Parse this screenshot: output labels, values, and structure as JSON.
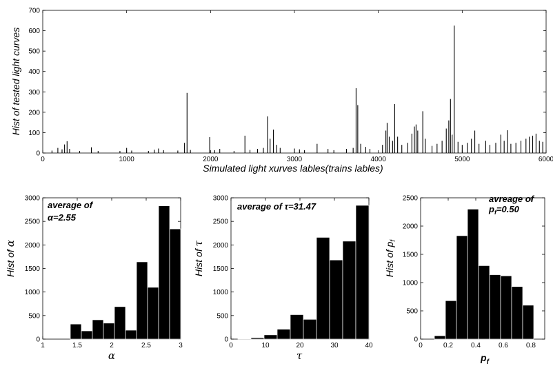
{
  "chart_data": [
    {
      "type": "bar",
      "id": "top",
      "xlabel": "Simulated light xurves lables(trains lables)",
      "ylabel": "Hist of tested light curves",
      "xlim": [
        0,
        6000
      ],
      "ylim": [
        0,
        700
      ],
      "xticks": [
        0,
        1000,
        2000,
        3000,
        4000,
        5000,
        6000
      ],
      "xtick_labels": [
        "0",
        "1000",
        "2000",
        "3000",
        "4000",
        "5000",
        "6000"
      ],
      "yticks": [
        0,
        100,
        200,
        300,
        400,
        500,
        600,
        700
      ],
      "ytick_labels": [
        "0",
        "100",
        "200",
        "300",
        "400",
        "500",
        "600",
        "700"
      ],
      "grid": false,
      "peaks": [
        {
          "x": 110,
          "y": 12
        },
        {
          "x": 180,
          "y": 25
        },
        {
          "x": 230,
          "y": 18
        },
        {
          "x": 260,
          "y": 42
        },
        {
          "x": 290,
          "y": 58
        },
        {
          "x": 320,
          "y": 20
        },
        {
          "x": 440,
          "y": 10
        },
        {
          "x": 580,
          "y": 28
        },
        {
          "x": 660,
          "y": 10
        },
        {
          "x": 920,
          "y": 10
        },
        {
          "x": 1000,
          "y": 25
        },
        {
          "x": 1060,
          "y": 12
        },
        {
          "x": 1260,
          "y": 10
        },
        {
          "x": 1330,
          "y": 16
        },
        {
          "x": 1380,
          "y": 22
        },
        {
          "x": 1440,
          "y": 14
        },
        {
          "x": 1610,
          "y": 12
        },
        {
          "x": 1690,
          "y": 50
        },
        {
          "x": 1720,
          "y": 295
        },
        {
          "x": 1760,
          "y": 15
        },
        {
          "x": 1990,
          "y": 78
        },
        {
          "x": 2050,
          "y": 14
        },
        {
          "x": 2110,
          "y": 20
        },
        {
          "x": 2280,
          "y": 10
        },
        {
          "x": 2410,
          "y": 85
        },
        {
          "x": 2470,
          "y": 15
        },
        {
          "x": 2560,
          "y": 20
        },
        {
          "x": 2630,
          "y": 25
        },
        {
          "x": 2680,
          "y": 180
        },
        {
          "x": 2710,
          "y": 70
        },
        {
          "x": 2750,
          "y": 115
        },
        {
          "x": 2790,
          "y": 40
        },
        {
          "x": 2830,
          "y": 25
        },
        {
          "x": 3000,
          "y": 22
        },
        {
          "x": 3060,
          "y": 18
        },
        {
          "x": 3120,
          "y": 14
        },
        {
          "x": 3270,
          "y": 45
        },
        {
          "x": 3400,
          "y": 20
        },
        {
          "x": 3470,
          "y": 14
        },
        {
          "x": 3620,
          "y": 20
        },
        {
          "x": 3700,
          "y": 25
        },
        {
          "x": 3735,
          "y": 318
        },
        {
          "x": 3755,
          "y": 235
        },
        {
          "x": 3790,
          "y": 45
        },
        {
          "x": 3850,
          "y": 30
        },
        {
          "x": 3900,
          "y": 20
        },
        {
          "x": 4050,
          "y": 40
        },
        {
          "x": 4090,
          "y": 110
        },
        {
          "x": 4105,
          "y": 148
        },
        {
          "x": 4130,
          "y": 80
        },
        {
          "x": 4170,
          "y": 60
        },
        {
          "x": 4195,
          "y": 240
        },
        {
          "x": 4230,
          "y": 80
        },
        {
          "x": 4280,
          "y": 40
        },
        {
          "x": 4350,
          "y": 50
        },
        {
          "x": 4400,
          "y": 95
        },
        {
          "x": 4430,
          "y": 130
        },
        {
          "x": 4450,
          "y": 140
        },
        {
          "x": 4470,
          "y": 110
        },
        {
          "x": 4530,
          "y": 205
        },
        {
          "x": 4560,
          "y": 70
        },
        {
          "x": 4640,
          "y": 35
        },
        {
          "x": 4700,
          "y": 45
        },
        {
          "x": 4760,
          "y": 60
        },
        {
          "x": 4810,
          "y": 120
        },
        {
          "x": 4840,
          "y": 160
        },
        {
          "x": 4860,
          "y": 265
        },
        {
          "x": 4880,
          "y": 90
        },
        {
          "x": 4905,
          "y": 625
        },
        {
          "x": 4950,
          "y": 55
        },
        {
          "x": 5000,
          "y": 40
        },
        {
          "x": 5060,
          "y": 50
        },
        {
          "x": 5110,
          "y": 70
        },
        {
          "x": 5150,
          "y": 110
        },
        {
          "x": 5200,
          "y": 45
        },
        {
          "x": 5280,
          "y": 60
        },
        {
          "x": 5330,
          "y": 40
        },
        {
          "x": 5400,
          "y": 50
        },
        {
          "x": 5460,
          "y": 90
        },
        {
          "x": 5500,
          "y": 60
        },
        {
          "x": 5540,
          "y": 112
        },
        {
          "x": 5580,
          "y": 45
        },
        {
          "x": 5640,
          "y": 50
        },
        {
          "x": 5700,
          "y": 60
        },
        {
          "x": 5760,
          "y": 70
        },
        {
          "x": 5800,
          "y": 80
        },
        {
          "x": 5840,
          "y": 85
        },
        {
          "x": 5880,
          "y": 95
        },
        {
          "x": 5920,
          "y": 60
        },
        {
          "x": 5960,
          "y": 55
        }
      ]
    },
    {
      "type": "bar",
      "id": "alpha",
      "xlabel": "α",
      "ylabel_prefix": "Hist of ",
      "ylabel_symbol": "α",
      "annotation_line1": "average of",
      "annotation_line2": "α=2.55",
      "xlim": [
        1,
        3
      ],
      "ylim": [
        0,
        3000
      ],
      "xticks": [
        1,
        1.5,
        2,
        2.5,
        3
      ],
      "xtick_labels": [
        "1",
        "1.5",
        "2",
        "2.5",
        "3"
      ],
      "yticks": [
        0,
        500,
        1000,
        1500,
        2000,
        2500,
        3000
      ],
      "ytick_labels": [
        "0",
        "500",
        "1000",
        "1500",
        "2000",
        "2500",
        "3000"
      ],
      "bin_edges": [
        1.4,
        1.56,
        1.72,
        1.88,
        2.04,
        2.2,
        2.36,
        2.52,
        2.68,
        2.84,
        3.0
      ],
      "values": [
        320,
        175,
        410,
        340,
        690,
        190,
        1640,
        1100,
        2830,
        2340
      ]
    },
    {
      "type": "bar",
      "id": "tau",
      "xlabel": "τ",
      "ylabel_prefix": "Hist of ",
      "ylabel_symbol": "τ",
      "annotation_line1": "average of τ=31.47",
      "annotation_line2": "",
      "xlim": [
        0,
        40
      ],
      "ylim": [
        0,
        3000
      ],
      "xticks": [
        0,
        10,
        20,
        30,
        40
      ],
      "xtick_labels": [
        "0",
        "10",
        "20",
        "30",
        "40"
      ],
      "yticks": [
        0,
        500,
        1000,
        1500,
        2000,
        2500,
        3000
      ],
      "ytick_labels": [
        "0",
        "500",
        "1000",
        "1500",
        "2000",
        "2500",
        "3000"
      ],
      "bin_edges": [
        2,
        5.8,
        9.6,
        13.4,
        17.2,
        21,
        24.8,
        28.6,
        32.4,
        36.2,
        40
      ],
      "values": [
        10,
        30,
        90,
        210,
        520,
        420,
        2160,
        1680,
        2080,
        2840
      ]
    },
    {
      "type": "bar",
      "id": "pf",
      "xlabel": "p",
      "xlabel_sub": "f",
      "ylabel_prefix": "Hist of ",
      "ylabel_symbol": "p",
      "ylabel_sub": "f",
      "annotation_line1": "avreage of",
      "annotation_line2": "p",
      "annotation_line2_sub": "f",
      "annotation_line2_rest": "=0.50",
      "xlim": [
        0,
        0.9
      ],
      "ylim": [
        0,
        2500
      ],
      "xticks": [
        0,
        0.2,
        0.4,
        0.6,
        0.8
      ],
      "xtick_labels": [
        "0",
        "0.2",
        "0.4",
        "0.6",
        "0.8"
      ],
      "yticks": [
        0,
        500,
        1000,
        1500,
        2000,
        2500
      ],
      "ytick_labels": [
        "0",
        "500",
        "1000",
        "1500",
        "2000",
        "2500"
      ],
      "bin_edges": [
        0.1,
        0.18,
        0.26,
        0.34,
        0.42,
        0.5,
        0.58,
        0.66,
        0.74,
        0.82,
        0.9
      ],
      "values": [
        60,
        680,
        1830,
        2300,
        1300,
        1140,
        1120,
        930,
        600,
        0
      ]
    }
  ]
}
